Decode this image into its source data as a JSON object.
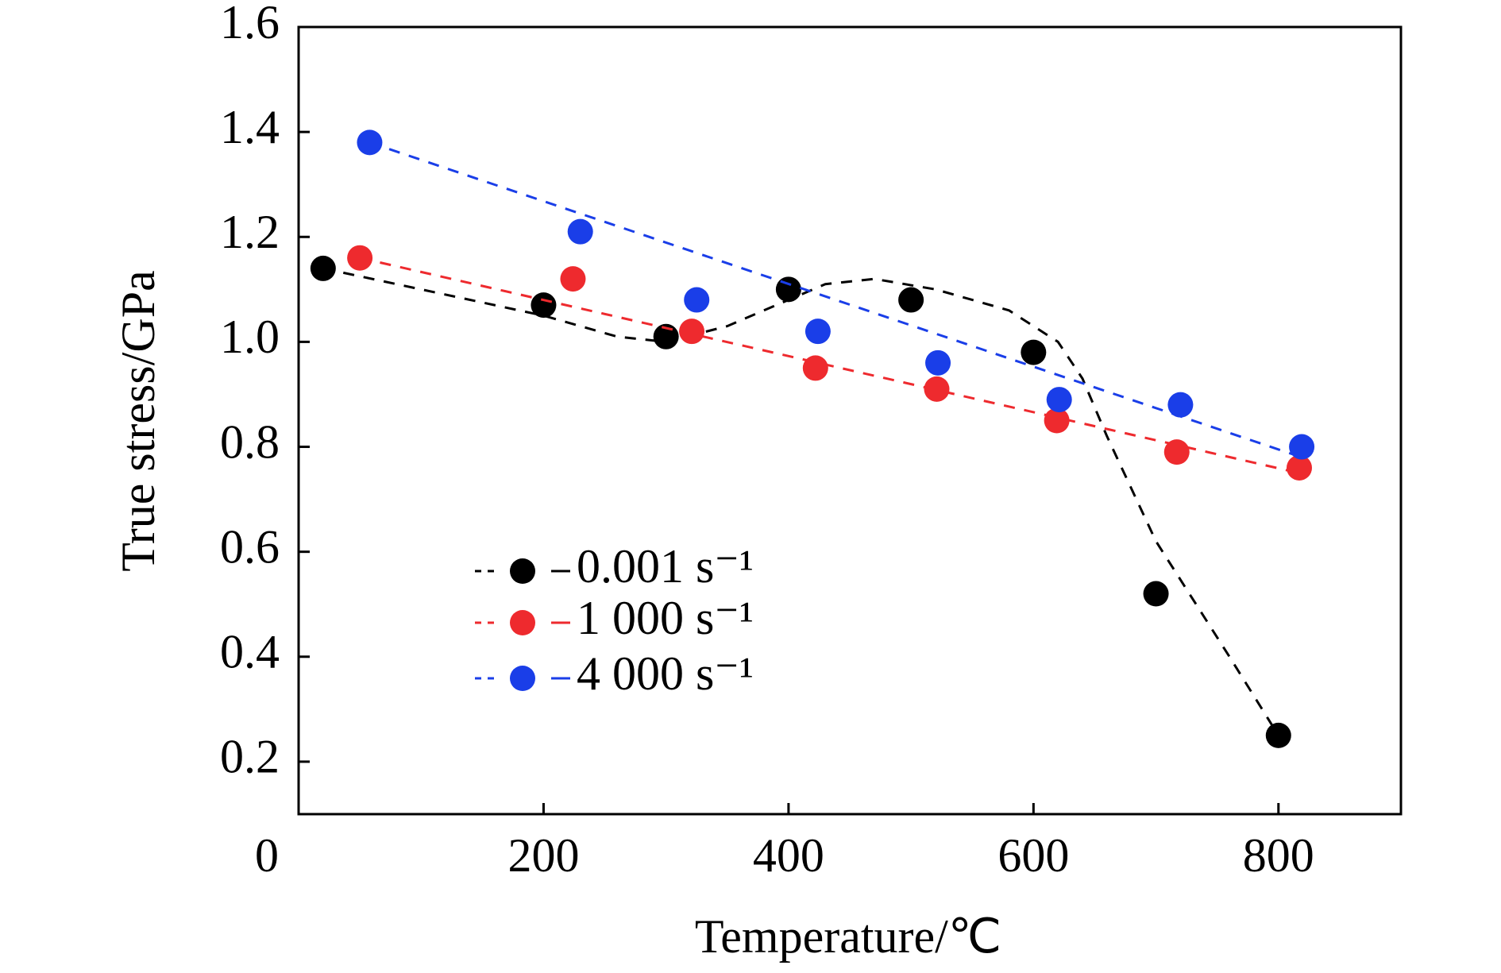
{
  "chart_data": {
    "type": "scatter",
    "xlabel": "Temperature/℃",
    "ylabel": "True stress/GPa",
    "xlim": [
      0,
      900
    ],
    "xticks": [
      0,
      200,
      400,
      600,
      800
    ],
    "ylim": [
      0.1,
      1.6
    ],
    "yticks": [
      0.2,
      0.4,
      0.6,
      0.8,
      {
        "value": 1,
        "label": "1.0"
      },
      1.2,
      1.4,
      1.6
    ],
    "legend": "lower-left",
    "series": [
      {
        "name": "0.001 s⁻¹",
        "color": "#000000",
        "x": [
          20,
          200,
          300,
          400,
          500,
          600,
          700,
          800
        ],
        "values": [
          1.14,
          1.07,
          1.01,
          1.1,
          1.08,
          0.98,
          0.52,
          0.25
        ],
        "trend": {
          "x": [
            20,
            100,
            200,
            260,
            300,
            350,
            400,
            430,
            470,
            520,
            580,
            620,
            640,
            660,
            700,
            760,
            800
          ],
          "y": [
            1.14,
            1.1,
            1.05,
            1.01,
            1.0,
            1.03,
            1.08,
            1.11,
            1.12,
            1.1,
            1.06,
            1.0,
            0.93,
            0.82,
            0.62,
            0.4,
            0.25
          ]
        }
      },
      {
        "name": "1 000 s⁻¹",
        "color": "#ee2a2e",
        "x": [
          50,
          224,
          321,
          422,
          521,
          619,
          717,
          817
        ],
        "values": [
          1.16,
          1.12,
          1.02,
          0.95,
          0.91,
          0.85,
          0.79,
          0.76
        ],
        "trend": {
          "x": [
            50,
            817
          ],
          "y": [
            1.16,
            0.75
          ]
        }
      },
      {
        "name": "4 000 s⁻¹",
        "color": "#1a3ee8",
        "x": [
          58,
          230,
          325,
          424,
          522,
          621,
          720,
          819
        ],
        "values": [
          1.38,
          1.21,
          1.08,
          1.02,
          0.96,
          0.89,
          0.88,
          0.8
        ],
        "trend": {
          "x": [
            58,
            819
          ],
          "y": [
            1.38,
            0.78
          ]
        }
      }
    ]
  }
}
